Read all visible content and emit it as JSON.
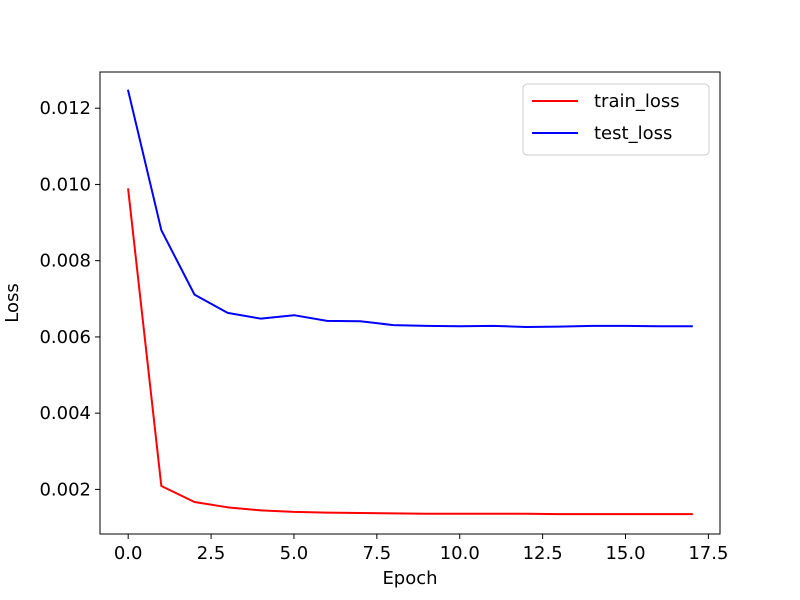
{
  "chart_data": {
    "type": "line",
    "title": "",
    "xlabel": "Epoch",
    "ylabel": "Loss",
    "xlim": [
      -0.85,
      17.85
    ],
    "ylim": [
      0.00083,
      0.01295
    ],
    "x_ticks": [
      0.0,
      2.5,
      5.0,
      7.5,
      10.0,
      12.5,
      15.0,
      17.5
    ],
    "x_tick_labels": [
      "0.0",
      "2.5",
      "5.0",
      "7.5",
      "10.0",
      "12.5",
      "15.0",
      "17.5"
    ],
    "y_ticks": [
      0.002,
      0.004,
      0.006,
      0.008,
      0.01,
      0.012
    ],
    "y_tick_labels": [
      "0.002",
      "0.004",
      "0.006",
      "0.008",
      "0.010",
      "0.012"
    ],
    "grid": false,
    "legend_position": "top-right",
    "x": [
      0,
      1,
      2,
      3,
      4,
      5,
      6,
      7,
      8,
      9,
      10,
      11,
      12,
      13,
      14,
      15,
      16,
      17
    ],
    "series": [
      {
        "name": "train_loss",
        "color": "#ff0000",
        "values": [
          0.00987,
          0.00209,
          0.00167,
          0.00153,
          0.00145,
          0.00141,
          0.00139,
          0.00138,
          0.00137,
          0.00136,
          0.00136,
          0.00136,
          0.00136,
          0.00135,
          0.00135,
          0.00135,
          0.00135,
          0.00135
        ]
      },
      {
        "name": "test_loss",
        "color": "#0000ff",
        "values": [
          0.01246,
          0.0088,
          0.00711,
          0.00663,
          0.00648,
          0.00657,
          0.00642,
          0.00641,
          0.00631,
          0.00629,
          0.00628,
          0.00629,
          0.00626,
          0.00627,
          0.00629,
          0.00629,
          0.00628,
          0.00628
        ]
      }
    ]
  }
}
